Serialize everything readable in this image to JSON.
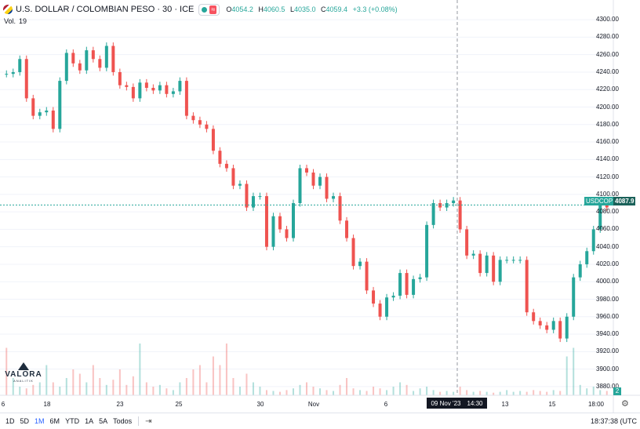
{
  "header": {
    "title": "U.S. DOLLAR / COLOMBIAN PESO · 30 · ICE",
    "wave_icon": "≈",
    "ohlc": [
      {
        "key": "O",
        "value": "4054.2"
      },
      {
        "key": "H",
        "value": "4060.5"
      },
      {
        "key": "L",
        "value": "4035.0"
      },
      {
        "key": "C",
        "value": "4059.4"
      },
      {
        "key": "",
        "value": "+3.3 (+0.08%)"
      }
    ],
    "volume_label": "Vol.",
    "volume_value": "19"
  },
  "price_tag": {
    "symbol": "USDCOP",
    "value": "4087.9",
    "color": "#26a69a"
  },
  "crosshair_label": {
    "date": "09 Nov '23",
    "time": "14:30"
  },
  "volume_axis_tag": "2",
  "logo": {
    "name": "VALORA",
    "sub": "ANALITIK"
  },
  "timeframes": [
    "1D",
    "5D",
    "1M",
    "6M",
    "YTD",
    "1A",
    "5A",
    "Todos"
  ],
  "active_timeframe": "1M",
  "clock": "18:37:38 (UTC",
  "colors": {
    "up": "#26a69a",
    "down": "#ef5350",
    "grid": "#f0f3fa"
  },
  "chart_data": {
    "type": "line",
    "title": "U.S. DOLLAR / COLOMBIAN PESO · 30 · ICE",
    "ylabel": "",
    "xlabel": "",
    "ylim": [
      3870,
      4310
    ],
    "y_ticks": [
      4300,
      4280,
      4260,
      4240,
      4220,
      4200,
      4180,
      4160,
      4140,
      4120,
      4100,
      4080,
      4060,
      4040,
      4020,
      4000,
      3980,
      3960,
      3940,
      3920,
      3900,
      3880
    ],
    "x_ticks": [
      "6",
      "18",
      "23",
      "25",
      "30",
      "Nov",
      "6",
      "13",
      "15",
      "18:00"
    ],
    "series": [
      {
        "values": [
          4238,
          4240,
          4255,
          4210,
          4190,
          4194,
          4196,
          4175,
          4230,
          4262,
          4250,
          4242,
          4265,
          4255,
          4245,
          4270,
          4240,
          4225,
          4223,
          4210,
          4228,
          4222,
          4219,
          4225,
          4215,
          4218,
          4230,
          4190,
          4185,
          4180,
          4175,
          4150,
          4135,
          4130,
          4110,
          4112,
          4085,
          4098,
          4098,
          4040,
          4075,
          4060,
          4050,
          4090,
          4130,
          4125,
          4110,
          4120,
          4095,
          4098,
          4070,
          4050,
          4018,
          4023,
          3990,
          3975,
          3960,
          3982,
          3984,
          4010,
          3985,
          4003,
          4005,
          4065,
          4090,
          4085,
          4090,
          4093,
          4060,
          4030,
          4032,
          4010,
          4030,
          4000,
          4025,
          4025,
          4025,
          4025,
          3965,
          3955,
          3950,
          3945,
          3955,
          3935,
          3960,
          4005,
          4020,
          4035,
          4060,
          4087.9,
          4085
        ]
      }
    ],
    "volumes": [
      0.55,
      0.2,
      0.1,
      0.08,
      0.12,
      0.15,
      0.35,
      0.15,
      0.1,
      0.2,
      0.3,
      0.25,
      0.15,
      0.35,
      0.2,
      0.12,
      0.18,
      0.3,
      0.12,
      0.22,
      0.6,
      0.15,
      0.1,
      0.12,
      0.08,
      0.06,
      0.15,
      0.2,
      0.3,
      0.35,
      0.15,
      0.45,
      0.35,
      0.6,
      0.2,
      0.1,
      0.25,
      0.15,
      0.1,
      0.06,
      0.05,
      0.04,
      0.06,
      0.08,
      0.12,
      0.15,
      0.1,
      0.08,
      0.06,
      0.05,
      0.12,
      0.2,
      0.08,
      0.06,
      0.05,
      0.1,
      0.08,
      0.06,
      0.1,
      0.15,
      0.12,
      0.05,
      0.08,
      0.1,
      0.06,
      0.04,
      0.05,
      0.04,
      0.1,
      0.06,
      0.04,
      0.05,
      0.04,
      0.03,
      0.04,
      0.06,
      0.04,
      0.05,
      0.04,
      0.06,
      0.05,
      0.04,
      0.06,
      0.05,
      0.45,
      0.55,
      0.12,
      0.08,
      0.1,
      0.06,
      0.05
    ],
    "last_price": 4087.9
  }
}
